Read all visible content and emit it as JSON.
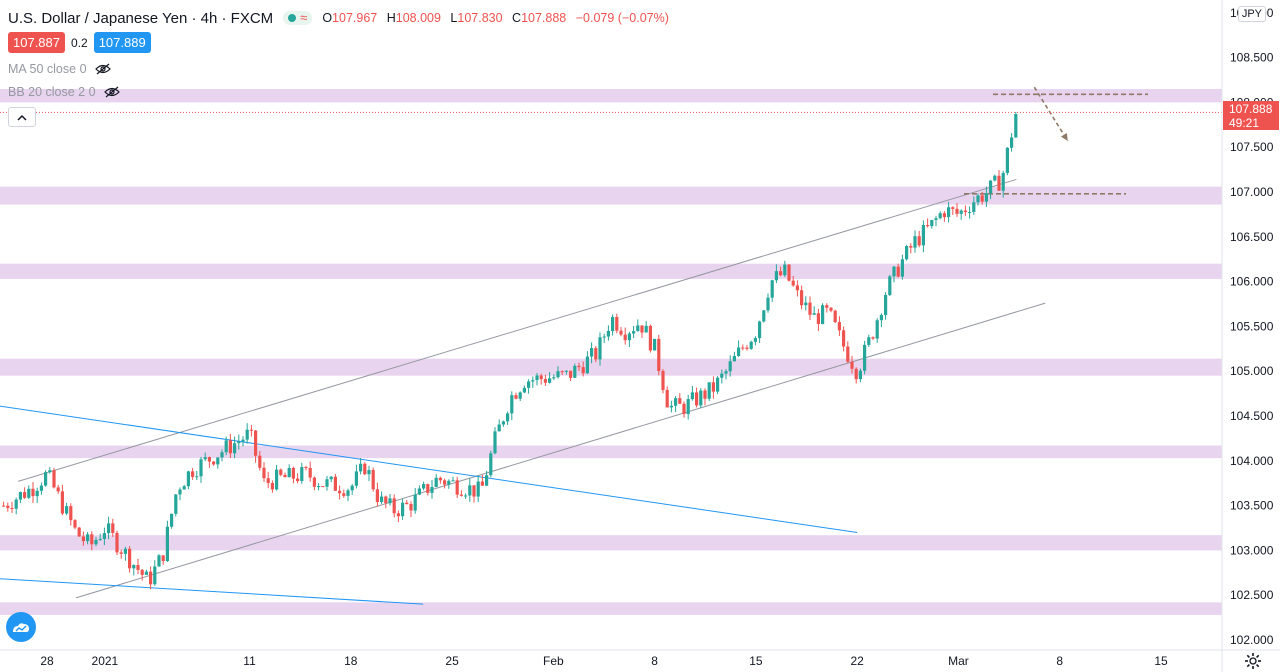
{
  "header": {
    "title": "U.S. Dollar / Japanese Yen",
    "interval": "4h",
    "source": "FXCM",
    "ohlc": {
      "o_label": "O",
      "o": "107.967",
      "h_label": "H",
      "h": "108.009",
      "l_label": "L",
      "l": "107.830",
      "c_label": "C",
      "c": "107.888",
      "change": "−0.079 (−0.07%)"
    }
  },
  "prices": {
    "sell": "107.887",
    "spread": "0.2",
    "buy": "107.889"
  },
  "indicators": [
    {
      "label": "MA 50 close 0"
    },
    {
      "label": "BB 20 close 2 0"
    }
  ],
  "currency": "JPY",
  "last_price": {
    "value": "107.888",
    "countdown": "49:21"
  },
  "colors": {
    "up": "#26a69a",
    "down": "#ef5350",
    "zone": "#e1c6ea",
    "channel": "#9598a1",
    "trendline": "#2196f3",
    "projection": "#8d7a66"
  },
  "chart_data": {
    "type": "candlestick",
    "title": "U.S. Dollar / Japanese Yen, 4h, FXCM",
    "ylim": [
      102.0,
      109.0
    ],
    "y_ticks": [
      "102.000",
      "102.500",
      "103.000",
      "103.500",
      "104.000",
      "104.500",
      "105.000",
      "105.500",
      "106.000",
      "106.500",
      "107.000",
      "107.500",
      "108.000",
      "108.500",
      "109.000"
    ],
    "x_ticks": [
      "28",
      "2021",
      "11",
      "18",
      "25",
      "Feb",
      "8",
      "15",
      "22",
      "Mar",
      "8",
      "15"
    ],
    "grid": false,
    "zones": [
      [
        102.28,
        102.42
      ],
      [
        103.0,
        103.17
      ],
      [
        104.03,
        104.17
      ],
      [
        104.95,
        105.14
      ],
      [
        106.03,
        106.2
      ],
      [
        106.86,
        107.06
      ],
      [
        108.0,
        108.15
      ]
    ],
    "close_path": [
      {
        "date": "2020-12-25",
        "close": 103.5
      },
      {
        "date": "2020-12-27",
        "close": 103.7
      },
      {
        "date": "2020-12-28",
        "close": 103.85
      },
      {
        "date": "2020-12-30",
        "close": 103.2
      },
      {
        "date": "2020-12-31",
        "close": 103.05
      },
      {
        "date": "2021-01-01",
        "close": 103.25
      },
      {
        "date": "2021-01-03",
        "close": 102.85
      },
      {
        "date": "2021-01-04",
        "close": 102.65
      },
      {
        "date": "2021-01-05",
        "close": 102.95
      },
      {
        "date": "2021-01-06",
        "close": 103.7
      },
      {
        "date": "2021-01-07",
        "close": 103.9
      },
      {
        "date": "2021-01-09",
        "close": 104.1
      },
      {
        "date": "2021-01-11",
        "close": 104.3
      },
      {
        "date": "2021-01-12",
        "close": 103.75
      },
      {
        "date": "2021-01-13",
        "close": 103.8
      },
      {
        "date": "2021-01-15",
        "close": 103.85
      },
      {
        "date": "2021-01-16",
        "close": 103.75
      },
      {
        "date": "2021-01-18",
        "close": 103.7
      },
      {
        "date": "2021-01-19",
        "close": 103.95
      },
      {
        "date": "2021-01-20",
        "close": 103.55
      },
      {
        "date": "2021-01-21",
        "close": 103.45
      },
      {
        "date": "2021-01-22",
        "close": 103.5
      },
      {
        "date": "2021-01-24",
        "close": 103.8
      },
      {
        "date": "2021-01-26",
        "close": 103.7
      },
      {
        "date": "2021-01-27",
        "close": 103.65
      },
      {
        "date": "2021-01-28",
        "close": 104.25
      },
      {
        "date": "2021-01-29",
        "close": 104.7
      },
      {
        "date": "2021-01-30",
        "close": 104.9
      },
      {
        "date": "2021-02-02",
        "close": 104.95
      },
      {
        "date": "2021-02-04",
        "close": 105.2
      },
      {
        "date": "2021-02-05",
        "close": 105.6
      },
      {
        "date": "2021-02-06",
        "close": 105.45
      },
      {
        "date": "2021-02-07",
        "close": 105.55
      },
      {
        "date": "2021-02-08",
        "close": 105.25
      },
      {
        "date": "2021-02-09",
        "close": 104.6
      },
      {
        "date": "2021-02-10",
        "close": 104.6
      },
      {
        "date": "2021-02-12",
        "close": 104.8
      },
      {
        "date": "2021-02-13",
        "close": 105.0
      },
      {
        "date": "2021-02-14",
        "close": 105.25
      },
      {
        "date": "2021-02-15",
        "close": 105.45
      },
      {
        "date": "2021-02-16",
        "close": 106.0
      },
      {
        "date": "2021-02-17",
        "close": 106.1
      },
      {
        "date": "2021-02-18",
        "close": 105.8
      },
      {
        "date": "2021-02-19",
        "close": 105.6
      },
      {
        "date": "2021-02-20",
        "close": 105.65
      },
      {
        "date": "2021-02-21",
        "close": 105.3
      },
      {
        "date": "2021-02-22",
        "close": 105.0
      },
      {
        "date": "2021-02-23",
        "close": 105.4
      },
      {
        "date": "2021-02-24",
        "close": 105.9
      },
      {
        "date": "2021-02-25",
        "close": 106.2
      },
      {
        "date": "2021-02-26",
        "close": 106.45
      },
      {
        "date": "2021-02-27",
        "close": 106.6
      },
      {
        "date": "2021-02-28",
        "close": 106.8
      },
      {
        "date": "2021-03-01",
        "close": 106.75
      },
      {
        "date": "2021-03-02",
        "close": 106.9
      },
      {
        "date": "2021-03-03",
        "close": 107.0
      },
      {
        "date": "2021-03-04",
        "close": 107.15
      },
      {
        "date": "2021-03-05",
        "close": 107.9
      }
    ],
    "channel_lower": [
      {
        "date": "2020-12-30",
        "close": 102.47
      },
      {
        "date": "2021-03-07",
        "close": 105.76
      }
    ],
    "channel_upper": [
      {
        "date": "2020-12-26",
        "close": 103.77
      },
      {
        "date": "2021-03-05",
        "close": 107.14
      }
    ],
    "trendline_1": [
      {
        "date": "2020-12-21",
        "close": 104.7
      },
      {
        "date": "2021-02-22",
        "close": 103.2
      }
    ],
    "trendline_2": [
      {
        "date": "2020-12-21",
        "close": 102.72
      },
      {
        "date": "2021-01-23",
        "close": 102.4
      }
    ],
    "resistance_levels": [
      108.09,
      106.98
    ],
    "projection": {
      "from_date": "2021-03-05",
      "from_price": 108.17,
      "to_date": "2021-03-08",
      "to_price": 107.57
    },
    "last_price": 107.888
  }
}
